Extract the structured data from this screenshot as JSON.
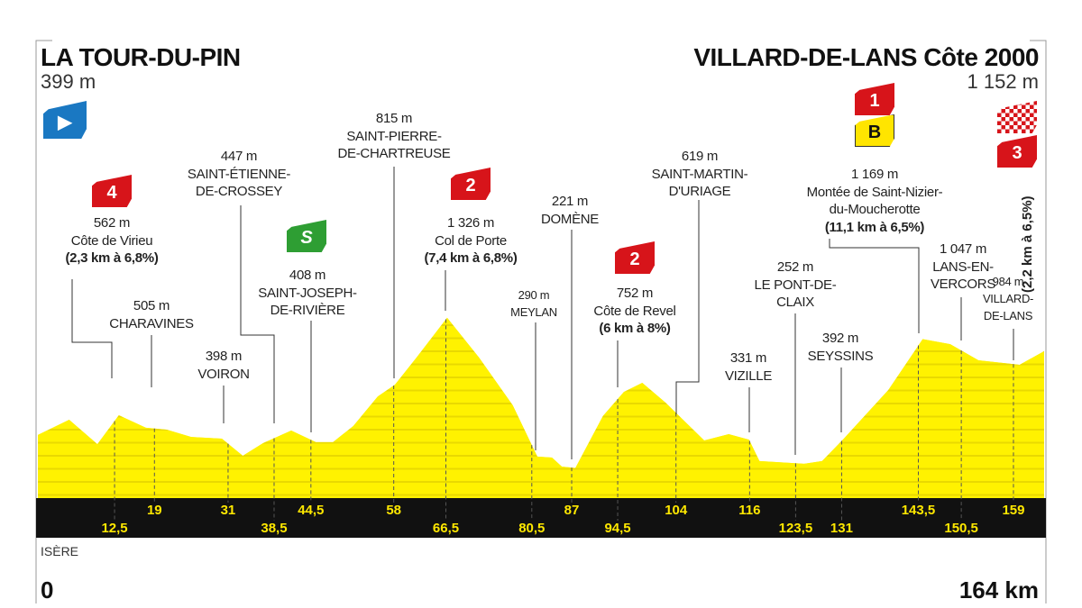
{
  "start": {
    "name": "LA TOUR-DU-PIN",
    "altitude": "399 m"
  },
  "finish": {
    "name": "VILLARD-DE-LANS Côte 2000",
    "altitude": "1 152 m",
    "climb_detail": "(2,2 km à 6,5%)",
    "category": "3"
  },
  "region": "ISÈRE",
  "distance_start": "0",
  "distance_end": "164 km",
  "colors": {
    "profile": "#fff200",
    "stripe": "#e9d900",
    "band": "#111111",
    "km_text": "#ffe800",
    "climb": "#d7141a",
    "sprint": "#2e9e33",
    "start": "#1a78c2",
    "bonus": "#ffe500"
  },
  "annotations": {
    "virieu": {
      "category": "4",
      "alt": "562 m",
      "name": "Côte de Virieu",
      "detail": "(2,3 km à 6,8%)"
    },
    "charavines": {
      "alt": "505 m",
      "name": "CHARAVINES"
    },
    "voiron": {
      "alt": "398 m",
      "name": "VOIRON"
    },
    "crossey": {
      "alt": "447 m",
      "name1": "SAINT-ÉTIENNE-",
      "name2": "DE-CROSSEY"
    },
    "riviere": {
      "sprint": "S",
      "alt": "408 m",
      "name1": "SAINT-JOSEPH-",
      "name2": "DE-RIVIÈRE"
    },
    "chartreuse": {
      "alt": "815 m",
      "name1": "SAINT-PIERRE-",
      "name2": "DE-CHARTREUSE"
    },
    "porte": {
      "category": "2",
      "alt": "1 326 m",
      "name": "Col de Porte",
      "detail": "(7,4 km à 6,8%)"
    },
    "meylan": {
      "alt": "290 m",
      "name": "MEYLAN"
    },
    "domene": {
      "alt": "221 m",
      "name": "DOMÈNE"
    },
    "revel": {
      "category": "2",
      "alt": "752 m",
      "name": "Côte de Revel",
      "detail": "(6 km à 8%)"
    },
    "uriage": {
      "alt": "619 m",
      "name1": "SAINT-MARTIN-",
      "name2": "D'URIAGE"
    },
    "vizille": {
      "alt": "331 m",
      "name": "VIZILLE"
    },
    "claix": {
      "alt": "252 m",
      "name1": "LE PONT-DE-",
      "name2": "CLAIX"
    },
    "seyssins": {
      "alt": "392 m",
      "name": "SEYSSINS"
    },
    "nizier": {
      "category": "1",
      "bonus": "B",
      "alt": "1 169 m",
      "name1": "Montée de Saint-Nizier-",
      "name2": "du-Moucherotte",
      "detail": "(11,1 km à 6,5%)"
    },
    "lans": {
      "alt": "1 047 m",
      "name1": "LANS-EN-",
      "name2": "VERCORS"
    },
    "villard": {
      "alt": "984 m",
      "name1": "VILLARD-",
      "name2": "DE-LANS"
    }
  },
  "chart_data": {
    "type": "area",
    "title": "LA TOUR-DU-PIN → VILLARD-DE-LANS Côte 2000",
    "xlabel": "km",
    "ylabel": "m",
    "xlim": [
      0,
      164
    ],
    "profile": [
      [
        0,
        464
      ],
      [
        5.1,
        576
      ],
      [
        9.7,
        397
      ],
      [
        13.2,
        609
      ],
      [
        17.6,
        517
      ],
      [
        21,
        503
      ],
      [
        25,
        450
      ],
      [
        30,
        437
      ],
      [
        33.4,
        311
      ],
      [
        36.7,
        404
      ],
      [
        41.3,
        497
      ],
      [
        45.3,
        411
      ],
      [
        48.1,
        411
      ],
      [
        51.4,
        530
      ],
      [
        55.4,
        748
      ],
      [
        58.2,
        834
      ],
      [
        61.7,
        1033
      ],
      [
        66.7,
        1326
      ],
      [
        71.9,
        1033
      ],
      [
        77.4,
        682
      ],
      [
        81.4,
        305
      ],
      [
        83.8,
        298
      ],
      [
        85.4,
        232
      ],
      [
        87.6,
        221
      ],
      [
        92.1,
        603
      ],
      [
        95.5,
        781
      ],
      [
        98.5,
        848
      ],
      [
        102.3,
        702
      ],
      [
        106.8,
        503
      ],
      [
        108.6,
        424
      ],
      [
        112.6,
        470
      ],
      [
        115.9,
        430
      ],
      [
        117.6,
        272
      ],
      [
        124.9,
        252
      ],
      [
        127.8,
        272
      ],
      [
        131.2,
        430
      ],
      [
        138.6,
        795
      ],
      [
        144.2,
        1169
      ],
      [
        148.7,
        1132
      ],
      [
        153.3,
        1013
      ],
      [
        160,
        980
      ],
      [
        164,
        1080
      ]
    ],
    "km_markers": [
      "12,5",
      "19",
      "31",
      "38,5",
      "44,5",
      "58",
      "66,5",
      "80,5",
      "87",
      "94,5",
      "104",
      "116",
      "123,5",
      "131",
      "143,5",
      "150,5",
      "159"
    ],
    "km_values": [
      12.5,
      19,
      31,
      38.5,
      44.5,
      58,
      66.5,
      80.5,
      87,
      94.5,
      104,
      116,
      123.5,
      131,
      143.5,
      150.5,
      159
    ]
  }
}
